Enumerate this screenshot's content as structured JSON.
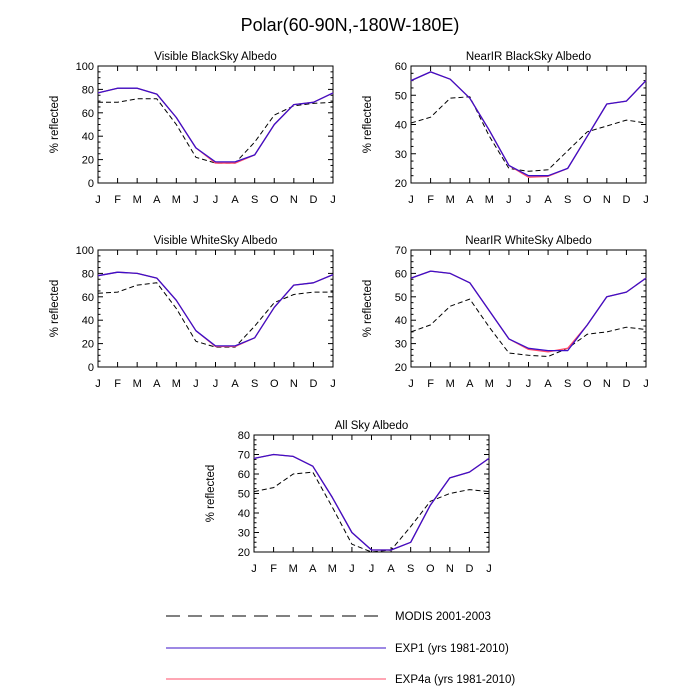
{
  "figure": {
    "title": "Polar(60-90N,-180W-180E)"
  },
  "legend": {
    "entries": [
      {
        "label": "MODIS 2001-2003",
        "style": "dashed",
        "color": "#000000"
      },
      {
        "label": "EXP1 (yrs 1981-2010)",
        "style": "solid",
        "color": "#3b10c8"
      },
      {
        "label": "EXP4a (yrs 1981-2010)",
        "style": "solid",
        "color": "#ff4d6a"
      }
    ]
  },
  "chart_data": [
    {
      "type": "line",
      "title": "Visible BlackSky Albedo",
      "ylabel": "% reflected",
      "categories": [
        "J",
        "F",
        "M",
        "A",
        "M",
        "J",
        "J",
        "A",
        "S",
        "O",
        "N",
        "D",
        "J"
      ],
      "ylim": [
        0,
        100
      ],
      "yticks": [
        0,
        20,
        40,
        60,
        80,
        100
      ],
      "series": [
        {
          "name": "MODIS 2001-2003",
          "values": [
            69,
            69,
            72,
            72,
            50,
            22,
            17,
            17,
            35,
            58,
            66,
            68,
            69
          ]
        },
        {
          "name": "EXP1 (yrs 1981-2010)",
          "values": [
            77,
            81,
            81,
            76,
            56,
            30,
            18,
            18,
            24,
            50,
            67,
            69,
            77
          ]
        },
        {
          "name": "EXP4a (yrs 1981-2010)",
          "values": [
            77,
            81,
            81,
            76,
            56,
            30,
            17,
            17,
            24,
            50,
            67,
            69,
            77
          ]
        }
      ]
    },
    {
      "type": "line",
      "title": "NearIR BlackSky Albedo",
      "ylabel": "% reflected",
      "categories": [
        "J",
        "F",
        "M",
        "A",
        "M",
        "J",
        "J",
        "A",
        "S",
        "O",
        "N",
        "D",
        "J"
      ],
      "ylim": [
        20,
        60
      ],
      "yticks": [
        20,
        30,
        40,
        50,
        60
      ],
      "series": [
        {
          "name": "MODIS 2001-2003",
          "values": [
            40.5,
            42.5,
            49,
            49.5,
            36,
            25,
            24,
            24.5,
            31,
            37.5,
            39.5,
            41.5,
            40.5
          ]
        },
        {
          "name": "EXP1 (yrs 1981-2010)",
          "values": [
            55,
            58,
            55.5,
            49,
            38,
            26,
            22.5,
            22.5,
            25,
            36,
            47,
            48,
            55
          ]
        },
        {
          "name": "EXP4a (yrs 1981-2010)",
          "values": [
            55,
            58,
            55.5,
            49,
            38,
            26,
            22,
            22.3,
            25,
            36,
            47,
            48,
            55
          ]
        }
      ]
    },
    {
      "type": "line",
      "title": "Visible WhiteSky Albedo",
      "ylabel": "% reflected",
      "categories": [
        "J",
        "F",
        "M",
        "A",
        "M",
        "J",
        "J",
        "A",
        "S",
        "O",
        "N",
        "D",
        "J"
      ],
      "ylim": [
        0,
        100
      ],
      "yticks": [
        0,
        20,
        40,
        60,
        80,
        100
      ],
      "series": [
        {
          "name": "MODIS 2001-2003",
          "values": [
            63,
            64,
            70,
            72,
            50,
            22,
            17,
            17,
            35,
            55,
            62,
            64,
            64
          ]
        },
        {
          "name": "EXP1 (yrs 1981-2010)",
          "values": [
            78,
            81,
            80,
            76,
            57,
            31,
            18,
            18,
            25,
            51,
            70,
            72,
            79
          ]
        },
        {
          "name": "EXP4a (yrs 1981-2010)",
          "values": [
            78,
            81,
            80,
            76,
            57,
            31,
            17.5,
            17.5,
            25,
            51,
            70,
            72,
            79
          ]
        }
      ]
    },
    {
      "type": "line",
      "title": "NearIR WhiteSky Albedo",
      "ylabel": "% reflected",
      "categories": [
        "J",
        "F",
        "M",
        "A",
        "M",
        "J",
        "J",
        "A",
        "S",
        "O",
        "N",
        "D",
        "J"
      ],
      "ylim": [
        20,
        70
      ],
      "yticks": [
        20,
        30,
        40,
        50,
        60,
        70
      ],
      "series": [
        {
          "name": "MODIS 2001-2003",
          "values": [
            35,
            38,
            46,
            49,
            37,
            26,
            25,
            24.5,
            28,
            34,
            35,
            37,
            36
          ]
        },
        {
          "name": "EXP1 (yrs 1981-2010)",
          "values": [
            58,
            61,
            60,
            56,
            44,
            32,
            28,
            27,
            27,
            38,
            50,
            52,
            58
          ]
        },
        {
          "name": "EXP4a (yrs 1981-2010)",
          "values": [
            58,
            61,
            60,
            56,
            44,
            32,
            27.5,
            26.5,
            28,
            38,
            50,
            52,
            58
          ]
        }
      ]
    },
    {
      "type": "line",
      "title": "All Sky Albedo",
      "ylabel": "% reflected",
      "categories": [
        "J",
        "F",
        "M",
        "A",
        "M",
        "J",
        "J",
        "A",
        "S",
        "O",
        "N",
        "D",
        "J"
      ],
      "ylim": [
        20,
        80
      ],
      "yticks": [
        20,
        30,
        40,
        50,
        60,
        70,
        80
      ],
      "series": [
        {
          "name": "MODIS 2001-2003",
          "values": [
            51,
            53,
            60,
            61,
            43,
            24,
            20,
            21,
            33,
            46,
            50,
            52,
            51
          ]
        },
        {
          "name": "EXP1 (yrs 1981-2010)",
          "values": [
            68,
            70,
            69,
            64,
            48,
            30,
            21,
            21,
            25,
            44,
            58,
            61,
            68
          ]
        },
        {
          "name": "EXP4a (yrs 1981-2010)",
          "values": [
            68,
            70,
            69,
            64,
            48,
            30,
            21,
            21,
            25,
            44,
            58,
            61,
            68
          ]
        }
      ]
    }
  ]
}
